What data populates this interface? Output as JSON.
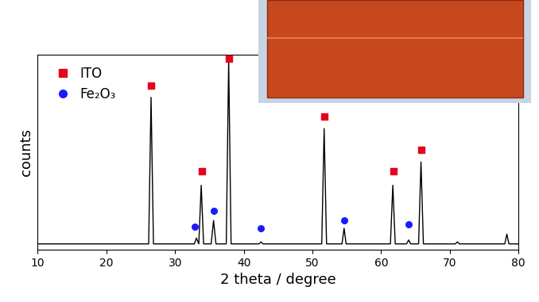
{
  "chart_data": {
    "type": "line",
    "x_label": "2 theta / degree",
    "y_label": "counts",
    "xlim": [
      10,
      80
    ],
    "xticks": [
      10,
      20,
      30,
      40,
      50,
      60,
      70,
      80
    ],
    "ylim": [
      0,
      100
    ],
    "tick_labels": "x",
    "legend": "upper left",
    "series": [
      {
        "type": "line",
        "color": "#000000",
        "line_style": "solid",
        "x": [
          10,
          26.15,
          26.5,
          26.85,
          32.8,
          33.1,
          33.45,
          33.8,
          34.15,
          35.25,
          35.6,
          35.95,
          37.45,
          37.8,
          38.15,
          42.2,
          42.5,
          42.8,
          51.35,
          51.7,
          52.05,
          54.3,
          54.6,
          54.9,
          61.35,
          61.7,
          62.05,
          63.7,
          64.0,
          64.3,
          65.45,
          65.8,
          66.15,
          70.8,
          71.1,
          71.4,
          78.0,
          78.3,
          78.6,
          80
        ],
        "values": [
          3,
          3,
          78,
          3,
          3,
          6,
          3,
          33,
          3,
          3,
          15,
          3,
          3,
          97,
          3,
          3,
          4,
          3,
          3,
          62,
          3,
          3,
          11,
          3,
          3,
          33,
          3,
          3,
          5,
          3,
          3,
          45,
          3,
          3,
          4,
          3,
          3,
          8,
          3,
          3
        ]
      },
      {
        "name": "ITO",
        "type": "scatter",
        "color": "#e8001c",
        "marker": "square",
        "x": [
          26.5,
          33.9,
          37.8,
          51.7,
          61.8,
          65.8
        ],
        "values": [
          84,
          40,
          98,
          68,
          40,
          51
        ]
      },
      {
        "name": "Fe₂O₃",
        "type": "scatter",
        "color": "#1a1aff",
        "marker": "circle",
        "x": [
          32.9,
          35.6,
          42.5,
          54.6,
          64.0
        ],
        "values": [
          12,
          20,
          11,
          15,
          13
        ]
      }
    ]
  }
}
